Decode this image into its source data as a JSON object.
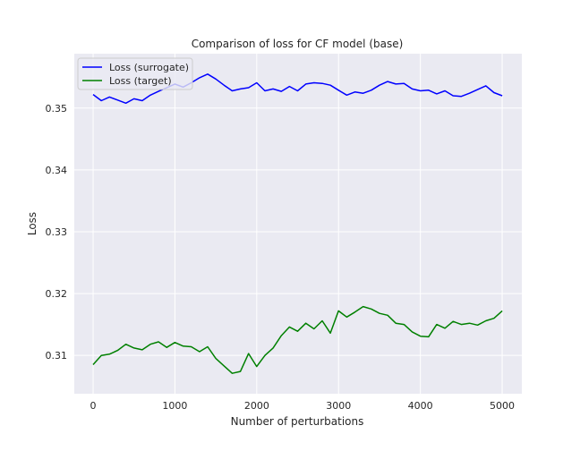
{
  "chart_data": {
    "type": "line",
    "title": "Comparison of loss for CF model (base)",
    "xlabel": "Number of perturbations",
    "ylabel": "Loss",
    "xlim": [
      -230,
      5240
    ],
    "ylim": [
      0.3038,
      0.3588
    ],
    "xticks": [
      0,
      1000,
      2000,
      3000,
      4000,
      5000
    ],
    "xtick_labels": [
      "0",
      "1000",
      "2000",
      "3000",
      "4000",
      "5000"
    ],
    "yticks": [
      0.31,
      0.32,
      0.33,
      0.34,
      0.35
    ],
    "ytick_labels": [
      "0.31",
      "0.32",
      "0.33",
      "0.34",
      "0.35"
    ],
    "grid": true,
    "legend_position": "top-left",
    "series": [
      {
        "name": "Loss (surrogate)",
        "color": "#0000ff",
        "x": [
          0,
          100,
          200,
          300,
          400,
          500,
          600,
          700,
          800,
          900,
          1000,
          1100,
          1200,
          1300,
          1400,
          1500,
          1600,
          1700,
          1800,
          1900,
          2000,
          2100,
          2200,
          2300,
          2400,
          2500,
          2600,
          2700,
          2800,
          2900,
          3000,
          3100,
          3200,
          3300,
          3400,
          3500,
          3600,
          3700,
          3800,
          3900,
          4000,
          4100,
          4200,
          4300,
          4400,
          4500,
          4600,
          4700,
          4800,
          4900,
          5000
        ],
        "y": [
          0.3522,
          0.3512,
          0.3518,
          0.3513,
          0.3508,
          0.3515,
          0.3512,
          0.3521,
          0.3527,
          0.3533,
          0.3539,
          0.3534,
          0.3541,
          0.3549,
          0.3555,
          0.3547,
          0.3537,
          0.3528,
          0.3531,
          0.3533,
          0.3541,
          0.3528,
          0.3531,
          0.3527,
          0.3535,
          0.3528,
          0.3539,
          0.3541,
          0.354,
          0.3537,
          0.3529,
          0.3521,
          0.3526,
          0.3524,
          0.3529,
          0.3537,
          0.3543,
          0.3539,
          0.354,
          0.3531,
          0.3528,
          0.3529,
          0.3523,
          0.3528,
          0.352,
          0.3519,
          0.3524,
          0.353,
          0.3536,
          0.3525,
          0.352
        ]
      },
      {
        "name": "Loss (target)",
        "color": "#008000",
        "x": [
          0,
          100,
          200,
          300,
          400,
          500,
          600,
          700,
          800,
          900,
          1000,
          1100,
          1200,
          1300,
          1400,
          1500,
          1600,
          1700,
          1800,
          1900,
          2000,
          2100,
          2200,
          2300,
          2400,
          2500,
          2600,
          2700,
          2800,
          2900,
          3000,
          3100,
          3200,
          3300,
          3400,
          3500,
          3600,
          3700,
          3800,
          3900,
          4000,
          4100,
          4200,
          4300,
          4400,
          4500,
          4600,
          4700,
          4800,
          4900,
          5000
        ],
        "y": [
          0.3085,
          0.31,
          0.3102,
          0.3108,
          0.3118,
          0.3112,
          0.3109,
          0.3118,
          0.3122,
          0.3113,
          0.3121,
          0.3115,
          0.3114,
          0.3106,
          0.3114,
          0.3095,
          0.3083,
          0.3071,
          0.3074,
          0.3103,
          0.3082,
          0.31,
          0.3112,
          0.3132,
          0.3146,
          0.3139,
          0.3152,
          0.3143,
          0.3156,
          0.3136,
          0.3172,
          0.3162,
          0.317,
          0.3179,
          0.3175,
          0.3168,
          0.3165,
          0.3152,
          0.315,
          0.3138,
          0.3131,
          0.313,
          0.315,
          0.3144,
          0.3155,
          0.315,
          0.3152,
          0.3149,
          0.3156,
          0.316,
          0.3172
        ]
      }
    ]
  }
}
